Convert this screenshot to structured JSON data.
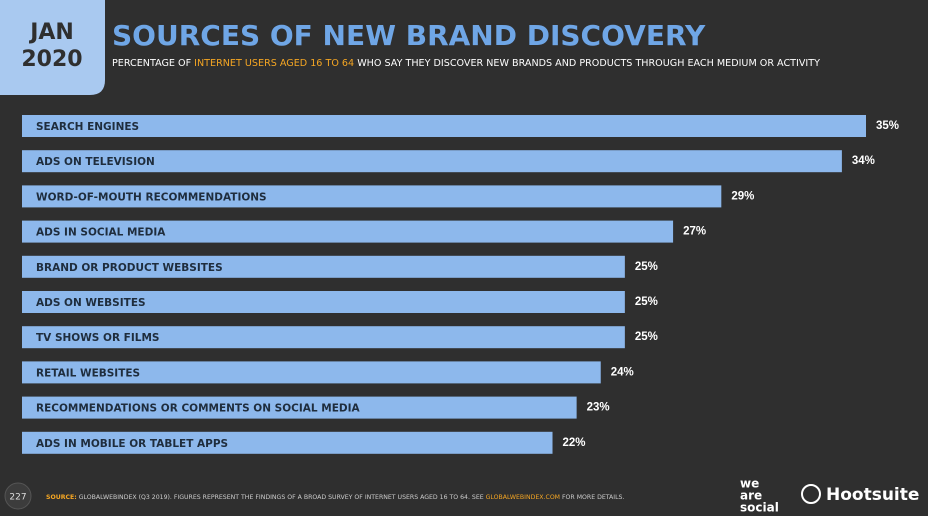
{
  "header": {
    "month": "JAN",
    "year": "2020"
  },
  "chart_data": {
    "type": "bar",
    "orientation": "horizontal",
    "title": "SOURCES OF NEW BRAND DISCOVERY",
    "subtitle": [
      "PERCENTAGE OF ",
      "INTERNET USERS AGED 16 TO 64",
      " WHO SAY THEY DISCOVER NEW BRANDS AND PRODUCTS THROUGH EACH MEDIUM OR ACTIVITY"
    ],
    "categories": [
      "SEARCH ENGINES",
      "ADS ON TELEVISION",
      "WORD-OF-MOUTH RECOMMENDATIONS",
      "ADS IN SOCIAL MEDIA",
      "BRAND OR PRODUCT WEBSITES",
      "ADS ON WEBSITES",
      "TV SHOWS OR FILMS",
      "RETAIL WEBSITES",
      "RECOMMENDATIONS OR COMMENTS ON SOCIAL MEDIA",
      "ADS IN MOBILE OR TABLET APPS"
    ],
    "values": [
      35,
      34,
      29,
      27,
      25,
      25,
      25,
      24,
      23,
      22
    ],
    "value_labels": [
      "35%",
      "34%",
      "29%",
      "27%",
      "25%",
      "25%",
      "25%",
      "24%",
      "23%",
      "22%"
    ],
    "color": "#8db8ec"
  },
  "footer": {
    "page_number": "227",
    "source": [
      "SOURCE:",
      " GLOBALWEBINDEX (Q3 2019). FIGURES REPRESENT THE FINDINGS OF A BROAD SURVEY OF INTERNET USERS AGED 16 TO 64. SEE ",
      "GLOBALWEBINDEX.COM",
      " FOR MORE DETAILS."
    ],
    "logo_left": [
      "we",
      "are",
      "social"
    ],
    "logo_right": "Hootsuite"
  }
}
